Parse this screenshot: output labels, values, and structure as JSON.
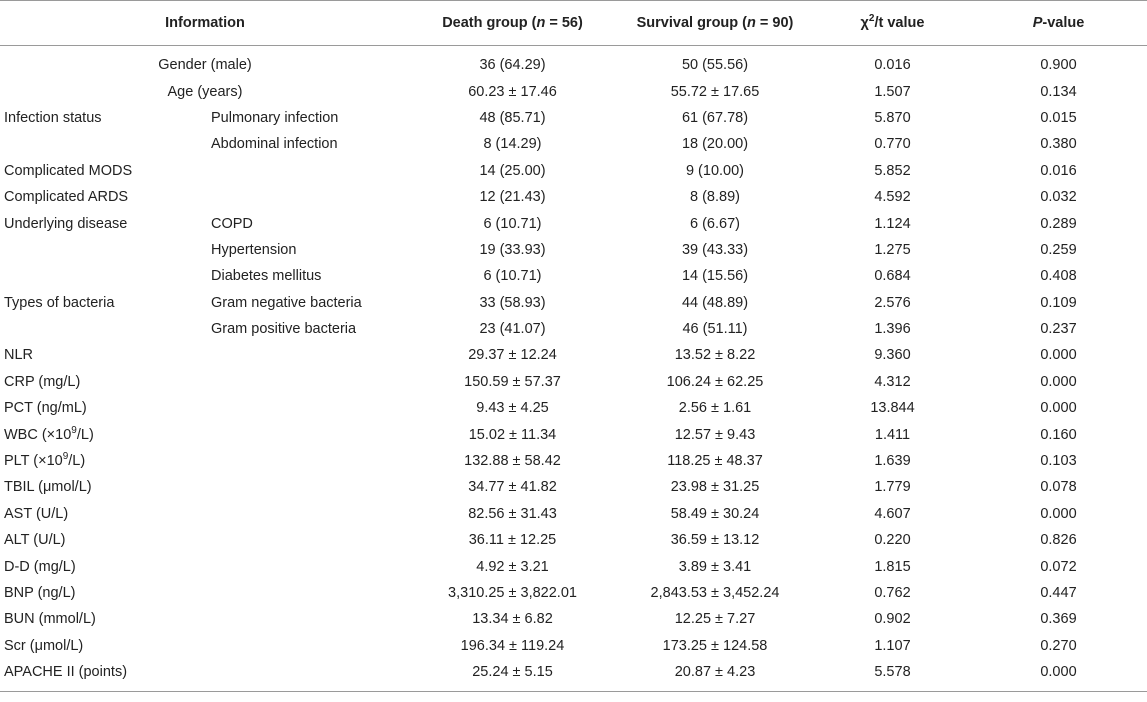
{
  "header": {
    "information": "Information",
    "death_prefix": "Death group (",
    "death_n": "n",
    "death_suffix": " = 56)",
    "survival_prefix": "Survival group (",
    "survival_n": "n",
    "survival_suffix": " = 90)",
    "chi_prefix": "χ",
    "chi_sup": "2",
    "chi_suffix": "/t value",
    "p_italic": "P",
    "p_suffix": "-value"
  },
  "rows": [
    {
      "label": "Gender (male)",
      "sub": "",
      "death": "36 (64.29)",
      "survival": "50 (55.56)",
      "chi": "0.016",
      "p": "0.900"
    },
    {
      "label": "Age (years)",
      "sub": "",
      "death": "60.23 ± 17.46",
      "survival": "55.72 ± 17.65",
      "chi": "1.507",
      "p": "0.134"
    },
    {
      "label": "Infection status",
      "sub": "Pulmonary infection",
      "death": "48 (85.71)",
      "survival": "61 (67.78)",
      "chi": "5.870",
      "p": "0.015"
    },
    {
      "label": "",
      "sub": "Abdominal infection",
      "death": "8 (14.29)",
      "survival": "18 (20.00)",
      "chi": "0.770",
      "p": "0.380"
    },
    {
      "label": "Complicated MODS",
      "sub": "",
      "death": "14 (25.00)",
      "survival": "9 (10.00)",
      "chi": "5.852",
      "p": "0.016"
    },
    {
      "label": "Complicated ARDS",
      "sub": "",
      "death": "12 (21.43)",
      "survival": "8 (8.89)",
      "chi": "4.592",
      "p": "0.032"
    },
    {
      "label": "Underlying disease",
      "sub": "COPD",
      "death": "6 (10.71)",
      "survival": "6 (6.67)",
      "chi": "1.124",
      "p": "0.289"
    },
    {
      "label": "",
      "sub": "Hypertension",
      "death": "19 (33.93)",
      "survival": "39 (43.33)",
      "chi": "1.275",
      "p": "0.259"
    },
    {
      "label": "",
      "sub": "Diabetes mellitus",
      "death": "6 (10.71)",
      "survival": "14 (15.56)",
      "chi": "0.684",
      "p": "0.408"
    },
    {
      "label": "Types of bacteria",
      "sub": "Gram negative bacteria",
      "death": "33 (58.93)",
      "survival": "44 (48.89)",
      "chi": "2.576",
      "p": "0.109"
    },
    {
      "label": "",
      "sub": "Gram positive bacteria",
      "death": "23 (41.07)",
      "survival": "46 (51.11)",
      "chi": "1.396",
      "p": "0.237"
    },
    {
      "label": "NLR",
      "sub": "",
      "death": "29.37 ± 12.24",
      "survival": "13.52 ± 8.22",
      "chi": "9.360",
      "p": "0.000"
    },
    {
      "label": "CRP (mg/L)",
      "sub": "",
      "death": "150.59 ± 57.37",
      "survival": "106.24 ± 62.25",
      "chi": "4.312",
      "p": "0.000"
    },
    {
      "label": "PCT (ng/mL)",
      "sub": "",
      "death": "9.43 ± 4.25",
      "survival": "2.56 ± 1.61",
      "chi": "13.844",
      "p": "0.000"
    },
    {
      "label_prefix": "WBC (×10",
      "label_sup": "9",
      "label_suffix": "/L)",
      "sub": "",
      "death": "15.02 ± 11.34",
      "survival": "12.57 ± 9.43",
      "chi": "1.411",
      "p": "0.160"
    },
    {
      "label_prefix": "PLT (×10",
      "label_sup": "9",
      "label_suffix": "/L)",
      "sub": "",
      "death": "132.88 ± 58.42",
      "survival": "118.25 ± 48.37",
      "chi": "1.639",
      "p": "0.103"
    },
    {
      "label": "TBIL (μmol/L)",
      "sub": "",
      "death": "34.77 ± 41.82",
      "survival": "23.98 ± 31.25",
      "chi": "1.779",
      "p": "0.078"
    },
    {
      "label": "AST (U/L)",
      "sub": "",
      "death": "82.56 ± 31.43",
      "survival": "58.49 ± 30.24",
      "chi": "4.607",
      "p": "0.000"
    },
    {
      "label": "ALT (U/L)",
      "sub": "",
      "death": "36.11 ± 12.25",
      "survival": "36.59 ± 13.12",
      "chi": "0.220",
      "p": "0.826"
    },
    {
      "label": "D-D (mg/L)",
      "sub": "",
      "death": "4.92 ± 3.21",
      "survival": "3.89 ± 3.41",
      "chi": "1.815",
      "p": "0.072"
    },
    {
      "label": "BNP (ng/L)",
      "sub": "",
      "death": "3,310.25 ± 3,822.01",
      "survival": "2,843.53 ± 3,452.24",
      "chi": "0.762",
      "p": "0.447"
    },
    {
      "label": "BUN (mmol/L)",
      "sub": "",
      "death": "13.34 ± 6.82",
      "survival": "12.25 ± 7.27",
      "chi": "0.902",
      "p": "0.369"
    },
    {
      "label": "Scr (μmol/L)",
      "sub": "",
      "death": "196.34 ± 119.24",
      "survival": "173.25 ± 124.58",
      "chi": "1.107",
      "p": "0.270"
    },
    {
      "label": "APACHE II (points)",
      "sub": "",
      "death": "25.24 ± 5.15",
      "survival": "20.87 ± 4.23",
      "chi": "5.578",
      "p": "0.000"
    }
  ]
}
